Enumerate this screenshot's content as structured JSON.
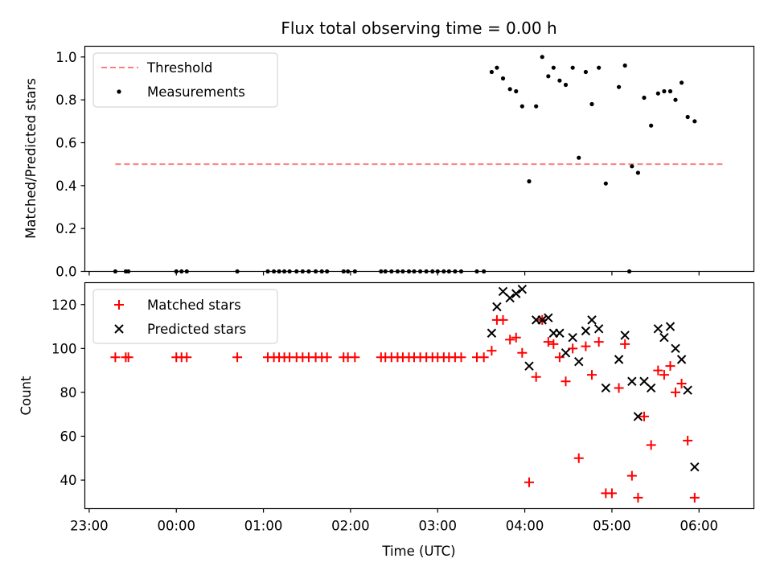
{
  "chart_data": {
    "title": "Flux total observing time = 0.00 h",
    "xlabel": "Time (UTC)",
    "x_tick_labels": [
      "23:00",
      "00:00",
      "01:00",
      "02:00",
      "03:00",
      "04:00",
      "05:00",
      "06:00"
    ],
    "x_tick_hours": [
      23,
      24,
      25,
      26,
      27,
      28,
      29,
      30
    ],
    "xlim": [
      22.95,
      30.63
    ],
    "top": {
      "type": "scatter",
      "ylabel": "Matched/Predicted stars",
      "ylim": [
        0,
        1.05
      ],
      "y_ticks": [
        0.0,
        0.2,
        0.4,
        0.6,
        0.8,
        1.0
      ],
      "y_tick_labels": [
        "0.0",
        "0.2",
        "0.4",
        "0.6",
        "0.8",
        "1.0"
      ],
      "legend": "top-left",
      "threshold": {
        "name": "Threshold",
        "value": 0.5,
        "x_range": [
          23.3,
          30.3
        ],
        "color": "#ff7f7f"
      },
      "measurements": {
        "name": "Measurements",
        "color": "#000000",
        "points": [
          [
            23.3,
            0
          ],
          [
            23.42,
            0
          ],
          [
            23.45,
            0
          ],
          [
            24.0,
            0
          ],
          [
            24.06,
            0
          ],
          [
            24.12,
            0
          ],
          [
            24.7,
            0
          ],
          [
            25.05,
            0
          ],
          [
            25.12,
            0
          ],
          [
            25.18,
            0
          ],
          [
            25.24,
            0
          ],
          [
            25.3,
            0
          ],
          [
            25.38,
            0
          ],
          [
            25.45,
            0
          ],
          [
            25.52,
            0
          ],
          [
            25.6,
            0
          ],
          [
            25.67,
            0
          ],
          [
            25.73,
            0
          ],
          [
            25.92,
            0
          ],
          [
            25.97,
            0
          ],
          [
            26.05,
            0
          ],
          [
            26.35,
            0
          ],
          [
            26.4,
            0
          ],
          [
            26.47,
            0
          ],
          [
            26.54,
            0
          ],
          [
            26.6,
            0
          ],
          [
            26.67,
            0
          ],
          [
            26.73,
            0
          ],
          [
            26.8,
            0
          ],
          [
            26.87,
            0
          ],
          [
            26.94,
            0
          ],
          [
            27.0,
            0
          ],
          [
            27.07,
            0
          ],
          [
            27.13,
            0
          ],
          [
            27.2,
            0
          ],
          [
            27.27,
            0
          ],
          [
            27.45,
            0
          ],
          [
            27.53,
            0
          ],
          [
            29.2,
            0
          ],
          [
            27.62,
            0.93
          ],
          [
            27.68,
            0.95
          ],
          [
            27.75,
            0.9
          ],
          [
            27.83,
            0.85
          ],
          [
            27.9,
            0.84
          ],
          [
            27.97,
            0.77
          ],
          [
            28.05,
            0.42
          ],
          [
            28.13,
            0.77
          ],
          [
            28.2,
            1.0
          ],
          [
            28.27,
            0.91
          ],
          [
            28.33,
            0.95
          ],
          [
            28.4,
            0.89
          ],
          [
            28.47,
            0.87
          ],
          [
            28.55,
            0.95
          ],
          [
            28.62,
            0.53
          ],
          [
            28.7,
            0.93
          ],
          [
            28.77,
            0.78
          ],
          [
            28.85,
            0.95
          ],
          [
            28.93,
            0.41
          ],
          [
            29.08,
            0.86
          ],
          [
            29.15,
            0.96
          ],
          [
            29.23,
            0.49
          ],
          [
            29.3,
            0.46
          ],
          [
            29.37,
            0.81
          ],
          [
            29.45,
            0.68
          ],
          [
            29.53,
            0.83
          ],
          [
            29.6,
            0.84
          ],
          [
            29.67,
            0.84
          ],
          [
            29.73,
            0.8
          ],
          [
            29.8,
            0.88
          ],
          [
            29.87,
            0.72
          ],
          [
            29.95,
            0.7
          ]
        ]
      }
    },
    "bottom": {
      "type": "scatter",
      "ylabel": "Count",
      "ylim": [
        27,
        130
      ],
      "y_ticks": [
        40,
        60,
        80,
        100,
        120
      ],
      "y_tick_labels": [
        "40",
        "60",
        "80",
        "100",
        "120"
      ],
      "legend": "top-left",
      "matched": {
        "name": "Matched stars",
        "color": "#ff0000",
        "marker": "+",
        "points": [
          [
            23.3,
            96
          ],
          [
            23.42,
            96
          ],
          [
            23.45,
            96
          ],
          [
            24.0,
            96
          ],
          [
            24.06,
            96
          ],
          [
            24.12,
            96
          ],
          [
            24.7,
            96
          ],
          [
            25.05,
            96
          ],
          [
            25.12,
            96
          ],
          [
            25.18,
            96
          ],
          [
            25.24,
            96
          ],
          [
            25.3,
            96
          ],
          [
            25.38,
            96
          ],
          [
            25.45,
            96
          ],
          [
            25.52,
            96
          ],
          [
            25.6,
            96
          ],
          [
            25.67,
            96
          ],
          [
            25.73,
            96
          ],
          [
            25.92,
            96
          ],
          [
            25.97,
            96
          ],
          [
            26.05,
            96
          ],
          [
            26.35,
            96
          ],
          [
            26.4,
            96
          ],
          [
            26.47,
            96
          ],
          [
            26.54,
            96
          ],
          [
            26.6,
            96
          ],
          [
            26.67,
            96
          ],
          [
            26.73,
            96
          ],
          [
            26.8,
            96
          ],
          [
            26.87,
            96
          ],
          [
            26.94,
            96
          ],
          [
            27.0,
            96
          ],
          [
            27.07,
            96
          ],
          [
            27.13,
            96
          ],
          [
            27.2,
            96
          ],
          [
            27.27,
            96
          ],
          [
            27.45,
            96
          ],
          [
            27.53,
            96
          ],
          [
            27.62,
            99
          ],
          [
            27.68,
            113
          ],
          [
            27.75,
            113
          ],
          [
            27.83,
            104
          ],
          [
            27.9,
            105
          ],
          [
            27.97,
            98
          ],
          [
            28.05,
            39
          ],
          [
            28.13,
            87
          ],
          [
            28.2,
            113
          ],
          [
            28.27,
            103
          ],
          [
            28.33,
            102
          ],
          [
            28.4,
            96
          ],
          [
            28.47,
            85
          ],
          [
            28.55,
            100
          ],
          [
            28.62,
            50
          ],
          [
            28.7,
            101
          ],
          [
            28.77,
            88
          ],
          [
            28.85,
            103
          ],
          [
            28.93,
            34
          ],
          [
            29.0,
            34
          ],
          [
            29.08,
            82
          ],
          [
            29.15,
            102
          ],
          [
            29.23,
            42
          ],
          [
            29.3,
            32
          ],
          [
            29.37,
            69
          ],
          [
            29.45,
            56
          ],
          [
            29.53,
            90
          ],
          [
            29.6,
            88
          ],
          [
            29.67,
            92
          ],
          [
            29.73,
            80
          ],
          [
            29.8,
            84
          ],
          [
            29.87,
            58
          ],
          [
            29.95,
            32
          ]
        ]
      },
      "predicted": {
        "name": "Predicted stars",
        "color": "#000000",
        "marker": "x",
        "points": [
          [
            27.62,
            107
          ],
          [
            27.68,
            119
          ],
          [
            27.75,
            126
          ],
          [
            27.83,
            123
          ],
          [
            27.9,
            125
          ],
          [
            27.97,
            127
          ],
          [
            28.05,
            92
          ],
          [
            28.13,
            113
          ],
          [
            28.2,
            113
          ],
          [
            28.27,
            114
          ],
          [
            28.33,
            107
          ],
          [
            28.4,
            107
          ],
          [
            28.47,
            98
          ],
          [
            28.55,
            105
          ],
          [
            28.62,
            94
          ],
          [
            28.7,
            108
          ],
          [
            28.77,
            113
          ],
          [
            28.85,
            109
          ],
          [
            28.93,
            82
          ],
          [
            29.08,
            95
          ],
          [
            29.15,
            106
          ],
          [
            29.23,
            85
          ],
          [
            29.3,
            69
          ],
          [
            29.37,
            85
          ],
          [
            29.45,
            82
          ],
          [
            29.53,
            109
          ],
          [
            29.6,
            105
          ],
          [
            29.67,
            110
          ],
          [
            29.73,
            100
          ],
          [
            29.8,
            95
          ],
          [
            29.87,
            81
          ],
          [
            29.95,
            46
          ]
        ]
      }
    }
  }
}
